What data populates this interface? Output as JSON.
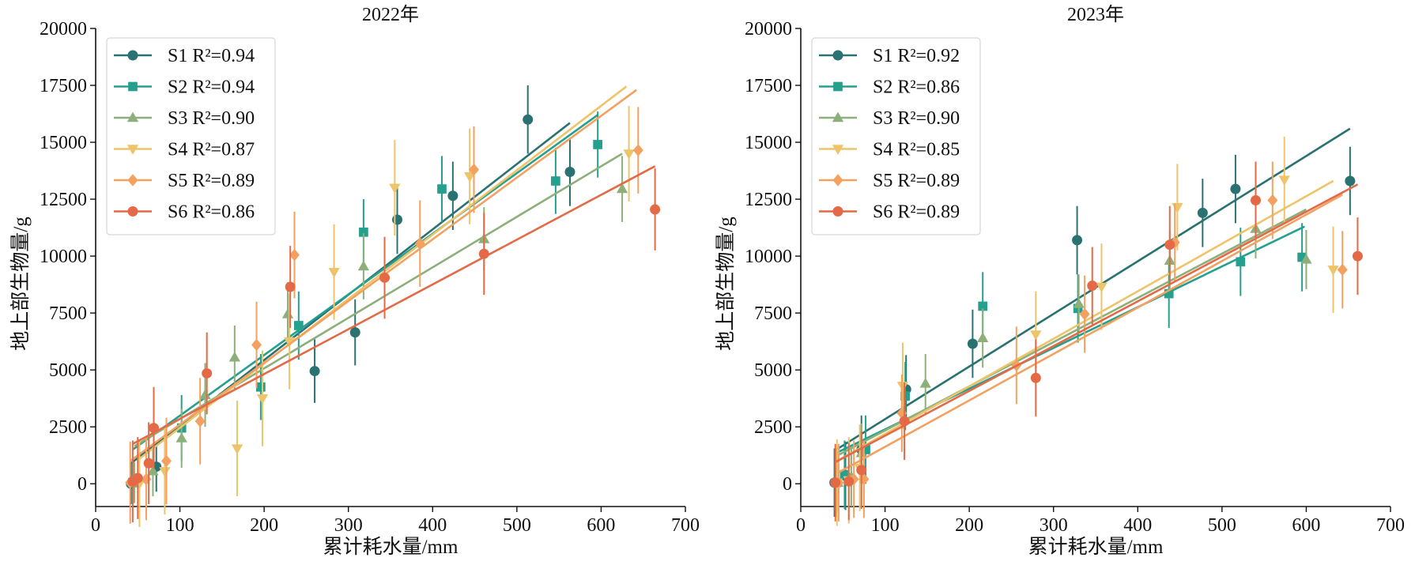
{
  "chart_data": [
    {
      "type": "scatter",
      "title": "2022年",
      "xlabel": "累计耗水量/mm",
      "ylabel": "地上部生物量/g",
      "xlim": [
        0,
        700
      ],
      "ylim": [
        -1000,
        20000
      ],
      "xticks": [
        0,
        100,
        200,
        300,
        400,
        500,
        600,
        700
      ],
      "yticks": [
        0,
        2500,
        5000,
        7500,
        10000,
        12500,
        15000,
        17500,
        20000
      ],
      "legend_position": "top-left",
      "series": [
        {
          "name": "S1",
          "r2_label": "R²=0.94",
          "color": "#2a7272",
          "marker": "circle",
          "points": [
            [
              42,
              0,
              900
            ],
            [
              72,
              750,
              1100
            ],
            [
              260,
              4950,
              1400
            ],
            [
              308,
              6650,
              1450
            ],
            [
              358,
              11600,
              1500
            ],
            [
              424,
              12650,
              1500
            ],
            [
              513,
              16000,
              1500
            ],
            [
              563,
              13700,
              1500
            ]
          ],
          "fit": [
            [
              42,
              900
            ],
            [
              563,
              15850
            ]
          ]
        },
        {
          "name": "S2",
          "r2_label": "R²=0.94",
          "color": "#26a08e",
          "marker": "square",
          "points": [
            [
              44,
              50,
              900
            ],
            [
              102,
              2450,
              1450
            ],
            [
              196,
              4250,
              1450
            ],
            [
              241,
              6950,
              1500
            ],
            [
              318,
              11050,
              1450
            ],
            [
              411,
              12950,
              1450
            ],
            [
              546,
              13300,
              1450
            ],
            [
              596,
              14900,
              1450
            ]
          ],
          "fit": [
            [
              44,
              1500
            ],
            [
              596,
              16200
            ]
          ]
        },
        {
          "name": "S3",
          "r2_label": "R²=0.90",
          "color": "#8db07a",
          "marker": "triangle-up",
          "points": [
            [
              46,
              50,
              900
            ],
            [
              68,
              550,
              1100
            ],
            [
              102,
              2000,
              1300
            ],
            [
              130,
              3900,
              1400
            ],
            [
              165,
              5550,
              1400
            ],
            [
              228,
              7450,
              1400
            ],
            [
              318,
              9550,
              1450
            ],
            [
              461,
              10750,
              1400
            ],
            [
              625,
              12950,
              1450
            ]
          ],
          "fit": [
            [
              46,
              1650
            ],
            [
              625,
              14500
            ]
          ]
        },
        {
          "name": "S4",
          "r2_label": "R²=0.87",
          "color": "#eec46a",
          "marker": "triangle-down",
          "points": [
            [
              52,
              0,
              1900
            ],
            [
              82,
              550,
              1900
            ],
            [
              168,
              1550,
              2100
            ],
            [
              198,
              3750,
              2100
            ],
            [
              230,
              6250,
              2100
            ],
            [
              283,
              9300,
              2100
            ],
            [
              355,
              13000,
              2100
            ],
            [
              444,
              13500,
              2100
            ],
            [
              633,
              14500,
              2100
            ]
          ],
          "fit": [
            [
              52,
              1100
            ],
            [
              630,
              17450
            ]
          ]
        },
        {
          "name": "S5",
          "r2_label": "R²=0.89",
          "color": "#f2a160",
          "marker": "diamond",
          "points": [
            [
              41,
              50,
              1800
            ],
            [
              60,
              200,
              1800
            ],
            [
              84,
              1000,
              1900
            ],
            [
              124,
              2750,
              1900
            ],
            [
              191,
              6100,
              1900
            ],
            [
              236,
              10050,
              1900
            ],
            [
              385,
              10550,
              1900
            ],
            [
              449,
              13800,
              1900
            ],
            [
              644,
              14650,
              1900
            ]
          ],
          "fit": [
            [
              41,
              1000
            ],
            [
              642,
              17300
            ]
          ]
        },
        {
          "name": "S6",
          "r2_label": "R²=0.86",
          "color": "#e46a47",
          "marker": "circle",
          "points": [
            [
              44,
              100,
              1800
            ],
            [
              50,
              250,
              1800
            ],
            [
              63,
              900,
              1800
            ],
            [
              69,
              2450,
              1800
            ],
            [
              132,
              4850,
              1800
            ],
            [
              231,
              8650,
              1800
            ],
            [
              343,
              9050,
              1800
            ],
            [
              461,
              10100,
              1800
            ],
            [
              664,
              12050,
              1800
            ]
          ],
          "fit": [
            [
              44,
              1750
            ],
            [
              664,
              13950
            ]
          ]
        }
      ]
    },
    {
      "type": "scatter",
      "title": "2023年",
      "xlabel": "累计耗水量/mm",
      "ylabel": "地上部生物量/g",
      "xlim": [
        0,
        700
      ],
      "ylim": [
        -1000,
        20000
      ],
      "xticks": [
        0,
        100,
        200,
        300,
        400,
        500,
        600,
        700
      ],
      "yticks": [
        0,
        2500,
        5000,
        7500,
        10000,
        12500,
        15000,
        17500,
        20000
      ],
      "legend_position": "top-left",
      "series": [
        {
          "name": "S1",
          "r2_label": "R²=0.92",
          "color": "#2a7272",
          "marker": "circle",
          "points": [
            [
              40,
              50,
              1500
            ],
            [
              53,
              350,
              1500
            ],
            [
              72,
              1500,
              1500
            ],
            [
              125,
              4150,
              1500
            ],
            [
              204,
              6150,
              1500
            ],
            [
              328,
              10700,
              1500
            ],
            [
              477,
              11900,
              1500
            ],
            [
              516,
              12950,
              1500
            ],
            [
              652,
              13300,
              1500
            ]
          ],
          "fit": [
            [
              40,
              1450
            ],
            [
              652,
              15600
            ]
          ]
        },
        {
          "name": "S2",
          "r2_label": "R²=0.86",
          "color": "#26a08e",
          "marker": "square",
          "points": [
            [
              42,
              50,
              1500
            ],
            [
              52,
              400,
              1500
            ],
            [
              77,
              1500,
              1500
            ],
            [
              124,
              3850,
              1500
            ],
            [
              216,
              7800,
              1500
            ],
            [
              329,
              7700,
              1500
            ],
            [
              437,
              8350,
              1500
            ],
            [
              522,
              9750,
              1500
            ],
            [
              595,
              9950,
              1500
            ]
          ],
          "fit": [
            [
              42,
              1350
            ],
            [
              598,
              11300
            ]
          ]
        },
        {
          "name": "S3",
          "r2_label": "R²=0.90",
          "color": "#8db07a",
          "marker": "triangle-up",
          "points": [
            [
              44,
              50,
              1300
            ],
            [
              60,
              300,
              1300
            ],
            [
              72,
              1350,
              1300
            ],
            [
              148,
              4400,
              1300
            ],
            [
              216,
              6400,
              1300
            ],
            [
              330,
              7900,
              1300
            ],
            [
              438,
              9800,
              1300
            ],
            [
              540,
              11200,
              1300
            ],
            [
              600,
              9850,
              1300
            ]
          ],
          "fit": [
            [
              44,
              1250
            ],
            [
              600,
              12050
            ]
          ]
        },
        {
          "name": "S4",
          "r2_label": "R²=0.85",
          "color": "#eec46a",
          "marker": "triangle-down",
          "points": [
            [
              43,
              50,
              1900
            ],
            [
              57,
              150,
              1900
            ],
            [
              70,
              700,
              1900
            ],
            [
              121,
              4300,
              1900
            ],
            [
              279,
              6550,
              1900
            ],
            [
              357,
              8650,
              1900
            ],
            [
              447,
              12150,
              1900
            ],
            [
              574,
              13350,
              1900
            ],
            [
              632,
              9400,
              1900
            ]
          ],
          "fit": [
            [
              43,
              1000
            ],
            [
              632,
              13300
            ]
          ]
        },
        {
          "name": "S5",
          "r2_label": "R²=0.89",
          "color": "#f2a160",
          "marker": "diamond",
          "points": [
            [
              45,
              50,
              1700
            ],
            [
              63,
              200,
              1700
            ],
            [
              75,
              200,
              1700
            ],
            [
              120,
              3100,
              1700
            ],
            [
              256,
              5200,
              1700
            ],
            [
              337,
              7450,
              1700
            ],
            [
              444,
              10600,
              1700
            ],
            [
              560,
              12450,
              1700
            ],
            [
              643,
              9400,
              1700
            ]
          ],
          "fit": [
            [
              45,
              500
            ],
            [
              643,
              12700
            ]
          ]
        },
        {
          "name": "S6",
          "r2_label": "R²=0.89",
          "color": "#e46a47",
          "marker": "circle",
          "points": [
            [
              41,
              50,
              1700
            ],
            [
              57,
              100,
              1700
            ],
            [
              72,
              600,
              1700
            ],
            [
              123,
              2750,
              1700
            ],
            [
              279,
              4650,
              1700
            ],
            [
              346,
              8700,
              1700
            ],
            [
              438,
              10500,
              1700
            ],
            [
              540,
              12450,
              1700
            ],
            [
              661,
              10000,
              1700
            ]
          ],
          "fit": [
            [
              41,
              950
            ],
            [
              661,
              13150
            ]
          ]
        }
      ]
    }
  ]
}
